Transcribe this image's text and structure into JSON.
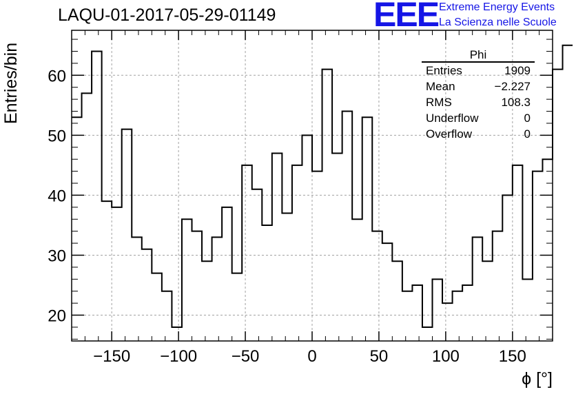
{
  "header": {
    "title": "LAQU-01-2017-05-29-01149",
    "logo": "EEE",
    "logo_line1": "Extreme Energy Events",
    "logo_line2": "La Scienza nelle Scuole"
  },
  "stats": {
    "name": "Phi",
    "rows": [
      {
        "label": "Entries",
        "value": "1909"
      },
      {
        "label": "Mean",
        "value": "−2.227"
      },
      {
        "label": "RMS",
        "value": "108.3"
      },
      {
        "label": "Underflow",
        "value": "0"
      },
      {
        "label": "Overflow",
        "value": "0"
      }
    ]
  },
  "chart_data": {
    "type": "bar",
    "style": "step histogram",
    "xlabel": "ϕ [°]",
    "ylabel": "Entries/bin",
    "xlim": [
      -180,
      180
    ],
    "ylim": [
      15.7,
      67.5
    ],
    "grid": true,
    "xticks": [
      -150,
      -100,
      -50,
      0,
      50,
      100,
      150
    ],
    "xtick_labels": [
      "−150",
      "−100",
      "−50",
      "0",
      "50",
      "100",
      "150"
    ],
    "yticks": [
      20,
      30,
      40,
      50,
      60
    ],
    "bin_width": 7.5,
    "bin_edges_start": -180,
    "values": [
      53,
      57,
      64,
      39,
      38,
      51,
      33,
      31,
      27,
      24,
      18,
      36,
      34,
      29,
      33,
      38,
      27,
      45,
      41,
      35,
      47,
      37,
      45,
      50,
      44,
      61,
      47,
      54,
      36,
      53,
      34,
      32,
      29,
      24,
      25,
      18,
      26,
      22,
      24,
      25,
      33,
      29,
      34,
      40,
      45,
      26,
      44,
      46,
      61,
      65
    ]
  },
  "colors": {
    "hist_line": "#000000",
    "grid": "#a0a0a0",
    "logo": "#1515e6"
  }
}
